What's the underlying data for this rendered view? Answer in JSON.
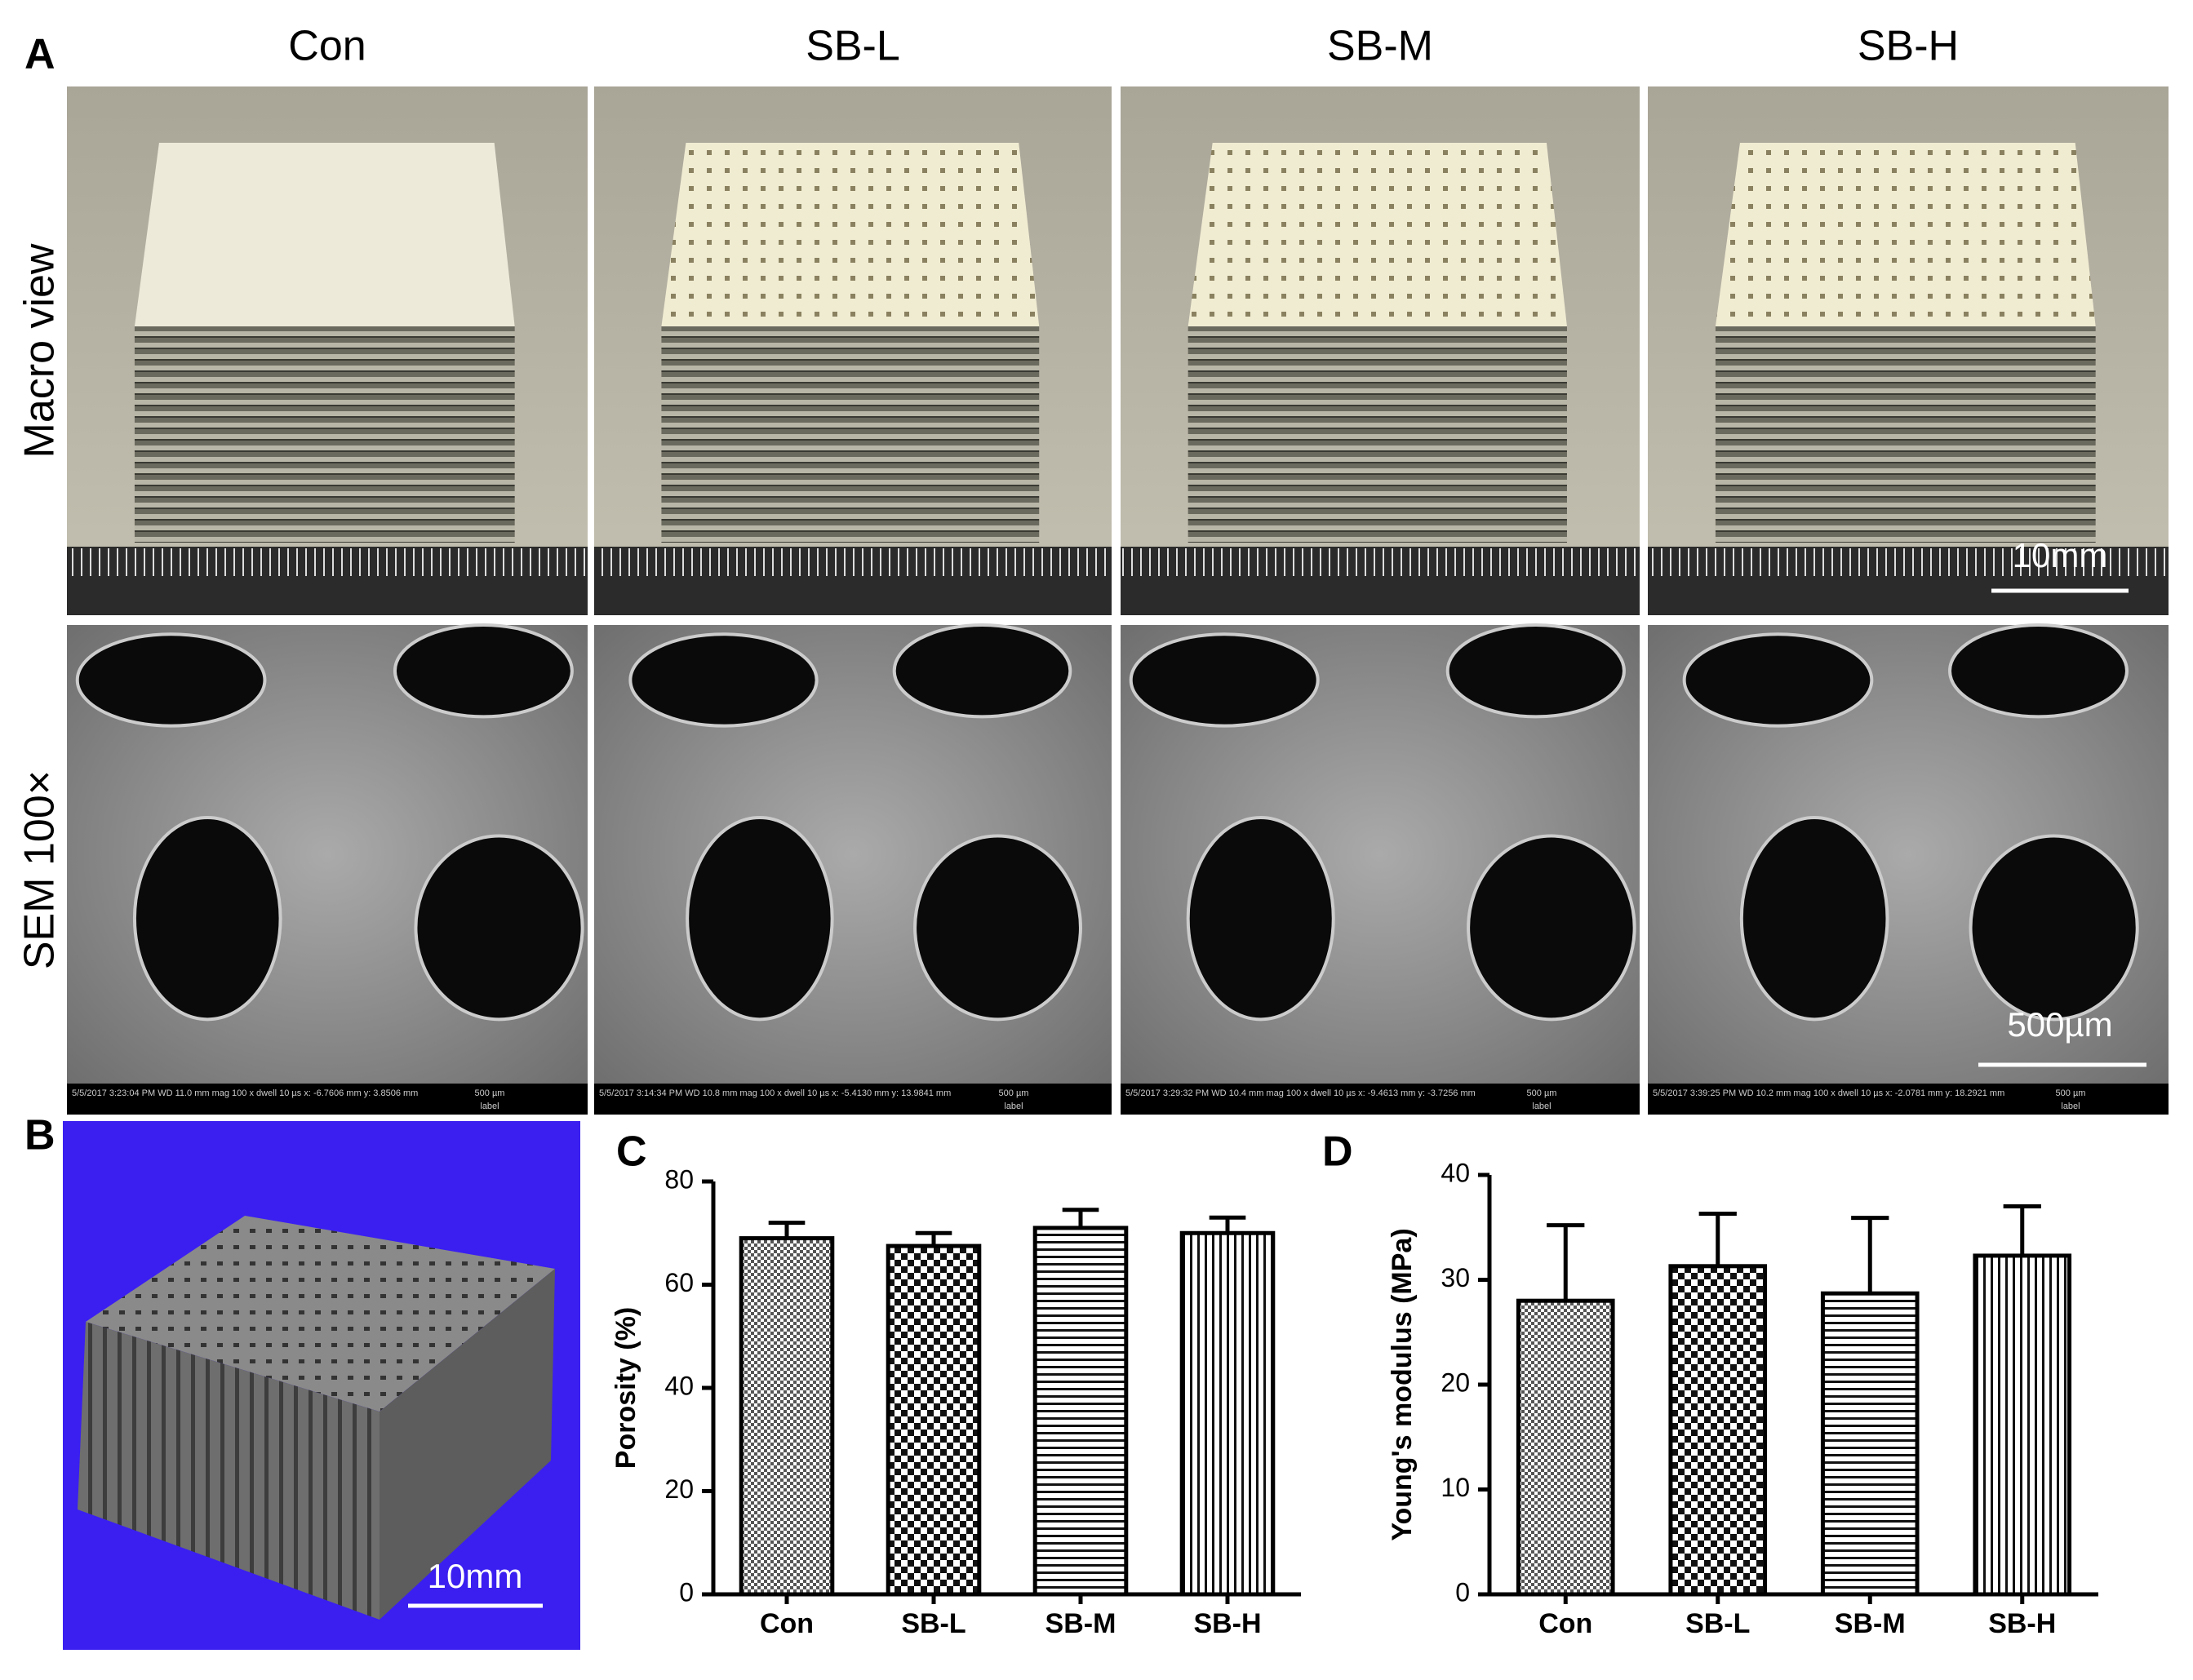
{
  "figure": {
    "panel_labels": [
      "A",
      "B",
      "C",
      "D"
    ],
    "columns": [
      "Con",
      "SB-L",
      "SB-M",
      "SB-H"
    ],
    "rows": [
      "Macro view",
      "SEM 100×"
    ],
    "macro_scale": "10mm",
    "sem_scale": "500µm",
    "ct_scale": "10mm",
    "sem_info": [
      {
        "text": "5/5/2017 3:23:04 PM  WD 11.0 mm  mag 100 x  dwell 10 µs  x: -6.7606 mm  y: 3.8506 mm",
        "scale": "500 µm",
        "label": "label"
      },
      {
        "text": "5/5/2017 3:14:34 PM  WD 10.8 mm  mag 100 x  dwell 10 µs  x: -5.4130 mm  y: 13.9841 mm",
        "scale": "500 µm",
        "label": "label"
      },
      {
        "text": "5/5/2017 3:29:32 PM  WD 10.4 mm  mag 100 x  dwell 10 µs  x: -9.4613 mm  y: -3.7256 mm",
        "scale": "500 µm",
        "label": "label"
      },
      {
        "text": "5/5/2017 3:39:25 PM  WD 10.2 mm  mag 100 x  dwell 10 µs  x: -2.0781 mm  y: 18.2921 mm",
        "scale": "500 µm",
        "label": "label"
      }
    ]
  },
  "chart_data": [
    {
      "type": "bar",
      "ylabel": "Porosity (%)",
      "categories": [
        "Con",
        "SB-L",
        "SB-M",
        "SB-H"
      ],
      "values": [
        69,
        67.5,
        71,
        70
      ],
      "errors": [
        3,
        2.5,
        3.5,
        3
      ],
      "patterns": [
        "fine-check",
        "check",
        "horizontal",
        "vertical"
      ],
      "ylim": [
        0,
        80
      ],
      "yticks": [
        0,
        20,
        40,
        60,
        80
      ]
    },
    {
      "type": "bar",
      "ylabel": "Young's modulus (MPa)",
      "categories": [
        "Con",
        "SB-L",
        "SB-M",
        "SB-H"
      ],
      "values": [
        28,
        31.3,
        28.7,
        32.3
      ],
      "errors": [
        7.2,
        5,
        7.2,
        4.7
      ],
      "patterns": [
        "fine-check",
        "check",
        "horizontal",
        "vertical"
      ],
      "ylim": [
        0,
        40
      ],
      "yticks": [
        0,
        10,
        20,
        30,
        40
      ]
    }
  ]
}
